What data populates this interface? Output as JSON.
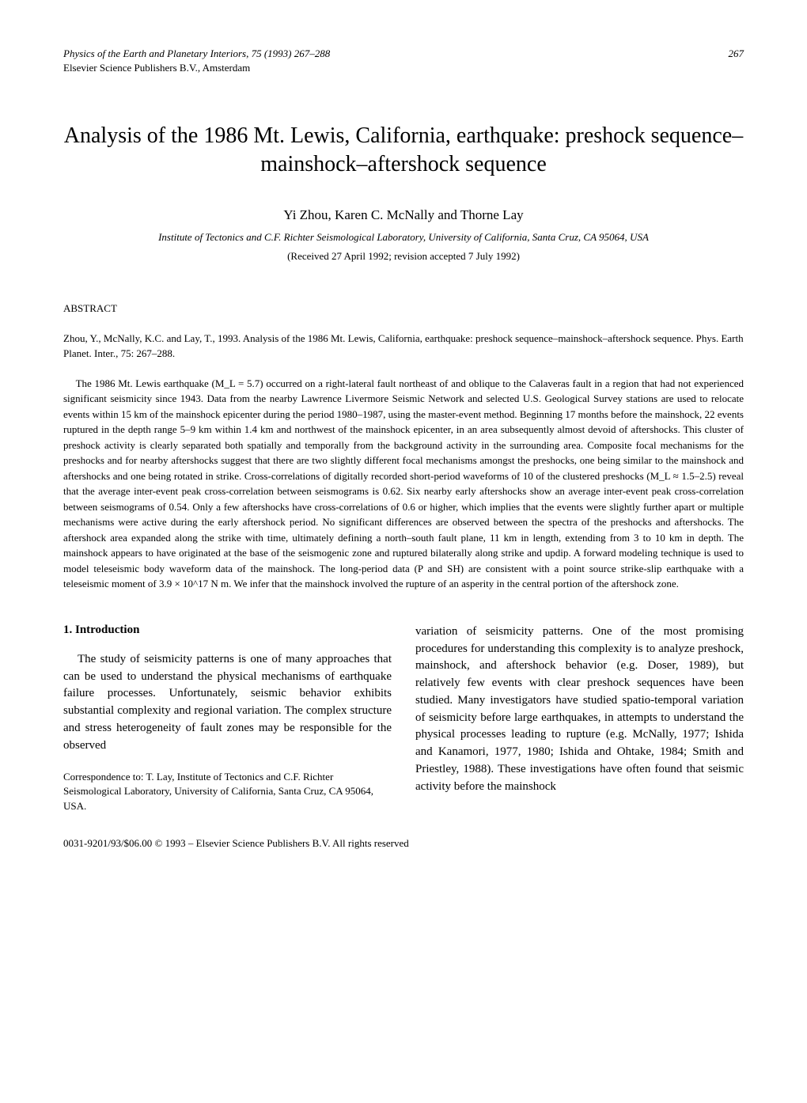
{
  "page_number": "267",
  "journal_line": "Physics of the Earth and Planetary Interiors, 75 (1993) 267–288",
  "publisher_line": "Elsevier Science Publishers B.V., Amsterdam",
  "title": "Analysis of the 1986 Mt. Lewis, California, earthquake: preshock sequence–mainshock–aftershock sequence",
  "authors": "Yi Zhou, Karen C. McNally and Thorne Lay",
  "affiliation": "Institute of Tectonics and C.F. Richter Seismological Laboratory, University of California, Santa Cruz, CA 95064, USA",
  "received": "(Received 27 April 1992; revision accepted 7 July 1992)",
  "abstract_heading": "ABSTRACT",
  "citation": "Zhou, Y., McNally, K.C. and Lay, T., 1993. Analysis of the 1986 Mt. Lewis, California, earthquake: preshock sequence–mainshock–aftershock sequence. Phys. Earth Planet. Inter., 75: 267–288.",
  "abstract_text": "The 1986 Mt. Lewis earthquake (M_L = 5.7) occurred on a right-lateral fault northeast of and oblique to the Calaveras fault in a region that had not experienced significant seismicity since 1943. Data from the nearby Lawrence Livermore Seismic Network and selected U.S. Geological Survey stations are used to relocate events within 15 km of the mainshock epicenter during the period 1980–1987, using the master-event method. Beginning 17 months before the mainshock, 22 events ruptured in the depth range 5–9 km within 1.4 km and northwest of the mainshock epicenter, in an area subsequently almost devoid of aftershocks. This cluster of preshock activity is clearly separated both spatially and temporally from the background activity in the surrounding area. Composite focal mechanisms for the preshocks and for nearby aftershocks suggest that there are two slightly different focal mechanisms amongst the preshocks, one being similar to the mainshock and aftershocks and one being rotated in strike. Cross-correlations of digitally recorded short-period waveforms of 10 of the clustered preshocks (M_L ≈ 1.5–2.5) reveal that the average inter-event peak cross-correlation between seismograms is 0.62. Six nearby early aftershocks show an average inter-event peak cross-correlation between seismograms of 0.54. Only a few aftershocks have cross-correlations of 0.6 or higher, which implies that the events were slightly further apart or multiple mechanisms were active during the early aftershock period. No significant differences are observed between the spectra of the preshocks and aftershocks. The aftershock area expanded along the strike with time, ultimately defining a north–south fault plane, 11 km in length, extending from 3 to 10 km in depth. The mainshock appears to have originated at the base of the seismogenic zone and ruptured bilaterally along strike and updip. A forward modeling technique is used to model teleseismic body waveform data of the mainshock. The long-period data (P and SH) are consistent with a point source strike-slip earthquake with a teleseismic moment of 3.9 × 10^17 N m. We infer that the mainshock involved the rupture of an asperity in the central portion of the aftershock zone.",
  "section1_heading": "1. Introduction",
  "col1_para1": "The study of seismicity patterns is one of many approaches that can be used to understand the physical mechanisms of earthquake failure processes. Unfortunately, seismic behavior exhibits substantial complexity and regional variation. The complex structure and stress heterogeneity of fault zones may be responsible for the observed",
  "correspondence": "Correspondence to: T. Lay, Institute of Tectonics and C.F. Richter Seismological Laboratory, University of California, Santa Cruz, CA 95064, USA.",
  "col2_para1": "variation of seismicity patterns. One of the most promising procedures for understanding this complexity is to analyze preshock, mainshock, and aftershock behavior (e.g. Doser, 1989), but relatively few events with clear preshock sequences have been studied. Many investigators have studied spatio-temporal variation of seismicity before large earthquakes, in attempts to understand the physical processes leading to rupture (e.g. McNally, 1977; Ishida and Kanamori, 1977, 1980; Ishida and Ohtake, 1984; Smith and Priestley, 1988). These investigations have often found that seismic activity before the mainshock",
  "footer": "0031-9201/93/$06.00 © 1993 – Elsevier Science Publishers B.V. All rights reserved"
}
